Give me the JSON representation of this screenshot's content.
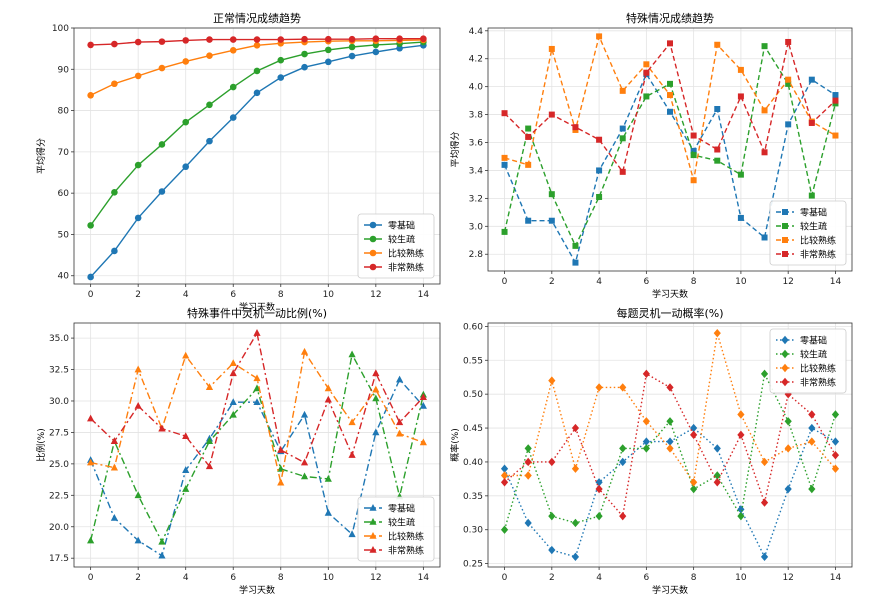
{
  "colors": [
    "#1f77b4",
    "#2ca02c",
    "#ff7f0e",
    "#d62728"
  ],
  "chart_data": [
    {
      "type": "line",
      "title": "正常情况成绩趋势",
      "xlabel": "学习天数",
      "ylabel": "平均得分",
      "x": [
        0,
        1,
        2,
        3,
        4,
        5,
        6,
        7,
        8,
        9,
        10,
        11,
        12,
        13,
        14
      ],
      "xticks": [
        0,
        2,
        4,
        6,
        8,
        10,
        12,
        14
      ],
      "ylim": [
        38,
        100
      ],
      "yticks": [
        40,
        50,
        60,
        70,
        80,
        90,
        100
      ],
      "ytick_decimals": 0,
      "grid": true,
      "legend": "lower-right",
      "line_style": "solid",
      "marker": "circle",
      "series": [
        {
          "name": "零基础",
          "values": [
            39.7,
            46.0,
            54.0,
            60.4,
            66.4,
            72.6,
            78.3,
            84.3,
            88.0,
            90.5,
            91.8,
            93.2,
            94.2,
            95.1,
            95.8
          ]
        },
        {
          "name": "较生疏",
          "values": [
            52.2,
            60.2,
            66.8,
            71.8,
            77.2,
            81.4,
            85.7,
            89.6,
            92.2,
            93.7,
            94.7,
            95.4,
            95.9,
            96.2,
            96.6
          ]
        },
        {
          "name": "比较熟练",
          "values": [
            83.7,
            86.5,
            88.4,
            90.3,
            91.9,
            93.3,
            94.6,
            95.8,
            96.3,
            96.6,
            96.8,
            96.9,
            96.9,
            97.0,
            97.1
          ]
        },
        {
          "name": "非常熟练",
          "values": [
            95.9,
            96.1,
            96.6,
            96.7,
            97.0,
            97.2,
            97.2,
            97.2,
            97.2,
            97.3,
            97.3,
            97.3,
            97.4,
            97.4,
            97.4
          ]
        }
      ]
    },
    {
      "type": "line",
      "title": "特殊情况成绩趋势",
      "xlabel": "学习天数",
      "ylabel": "平均得分",
      "x": [
        0,
        1,
        2,
        3,
        4,
        5,
        6,
        7,
        8,
        9,
        10,
        11,
        12,
        13,
        14
      ],
      "xticks": [
        0,
        2,
        4,
        6,
        8,
        10,
        12,
        14
      ],
      "ylim": [
        2.68,
        4.42
      ],
      "yticks": [
        2.8,
        3.0,
        3.2,
        3.4,
        3.6,
        3.8,
        4.0,
        4.2,
        4.4
      ],
      "ytick_decimals": 1,
      "grid": true,
      "legend": "lower-right",
      "line_style": "dashed",
      "marker": "square",
      "series": [
        {
          "name": "零基础",
          "values": [
            3.44,
            3.04,
            3.04,
            2.74,
            3.4,
            3.7,
            4.09,
            3.82,
            3.54,
            3.84,
            3.06,
            2.92,
            3.73,
            4.05,
            3.94
          ]
        },
        {
          "name": "较生疏",
          "values": [
            2.96,
            3.7,
            3.23,
            2.86,
            3.21,
            3.63,
            3.93,
            4.02,
            3.51,
            3.47,
            3.37,
            4.29,
            4.02,
            3.22,
            3.88
          ]
        },
        {
          "name": "比较熟练",
          "values": [
            3.49,
            3.44,
            4.27,
            3.69,
            4.36,
            3.97,
            4.16,
            3.94,
            3.33,
            4.3,
            4.12,
            3.83,
            4.05,
            3.75,
            3.65
          ]
        },
        {
          "name": "非常熟练",
          "values": [
            3.81,
            3.64,
            3.8,
            3.71,
            3.62,
            3.39,
            4.1,
            4.31,
            3.65,
            3.55,
            3.93,
            3.53,
            4.32,
            3.74,
            3.9
          ]
        }
      ]
    },
    {
      "type": "line",
      "title": "特殊事件中灵机一动比例(%)",
      "xlabel": "学习天数",
      "ylabel": "比例(%)",
      "x": [
        0,
        1,
        2,
        3,
        4,
        5,
        6,
        7,
        8,
        9,
        10,
        11,
        12,
        13,
        14
      ],
      "xticks": [
        0,
        2,
        4,
        6,
        8,
        10,
        12,
        14
      ],
      "ylim": [
        16.8,
        36.2
      ],
      "yticks": [
        17.5,
        20.0,
        22.5,
        25.0,
        27.5,
        30.0,
        32.5,
        35.0
      ],
      "ytick_decimals": 1,
      "grid": true,
      "legend": "lower-right",
      "line_style": "dashdot",
      "marker": "triangle",
      "series": [
        {
          "name": "零基础",
          "values": [
            25.3,
            20.7,
            18.9,
            17.7,
            24.5,
            27.0,
            29.9,
            29.9,
            26.0,
            28.9,
            21.1,
            19.4,
            27.5,
            31.7,
            29.6
          ]
        },
        {
          "name": "较生疏",
          "values": [
            18.9,
            26.8,
            22.5,
            18.8,
            23.0,
            26.8,
            28.9,
            31.0,
            24.6,
            24.0,
            23.8,
            33.7,
            30.2,
            22.4,
            30.5
          ]
        },
        {
          "name": "比较熟练",
          "values": [
            25.1,
            24.7,
            32.5,
            27.8,
            33.6,
            31.1,
            33.0,
            31.8,
            23.5,
            33.9,
            31.0,
            28.3,
            30.9,
            27.4,
            26.7
          ]
        },
        {
          "name": "非常熟练",
          "values": [
            28.6,
            26.8,
            29.6,
            27.8,
            27.2,
            24.8,
            32.2,
            35.4,
            26.1,
            25.1,
            30.1,
            25.7,
            32.2,
            28.3,
            30.3
          ]
        }
      ]
    },
    {
      "type": "line",
      "title": "每题灵机一动概率(%)",
      "xlabel": "学习天数",
      "ylabel": "概率(%)",
      "x": [
        0,
        1,
        2,
        3,
        4,
        5,
        6,
        7,
        8,
        9,
        10,
        11,
        12,
        13,
        14
      ],
      "xticks": [
        0,
        2,
        4,
        6,
        8,
        10,
        12,
        14
      ],
      "ylim": [
        0.245,
        0.605
      ],
      "yticks": [
        0.25,
        0.3,
        0.35,
        0.4,
        0.45,
        0.5,
        0.55,
        0.6
      ],
      "ytick_decimals": 2,
      "grid": true,
      "legend": "upper-right",
      "line_style": "dotted",
      "marker": "diamond",
      "series": [
        {
          "name": "零基础",
          "values": [
            0.39,
            0.31,
            0.27,
            0.26,
            0.37,
            0.4,
            0.43,
            0.43,
            0.45,
            0.42,
            0.33,
            0.26,
            0.36,
            0.45,
            0.43
          ]
        },
        {
          "name": "较生疏",
          "values": [
            0.3,
            0.42,
            0.32,
            0.31,
            0.32,
            0.42,
            0.42,
            0.46,
            0.36,
            0.38,
            0.32,
            0.53,
            0.46,
            0.36,
            0.47
          ]
        },
        {
          "name": "比较熟练",
          "values": [
            0.38,
            0.38,
            0.52,
            0.39,
            0.51,
            0.51,
            0.46,
            0.42,
            0.37,
            0.59,
            0.47,
            0.4,
            0.42,
            0.43,
            0.39
          ]
        },
        {
          "name": "非常熟练",
          "values": [
            0.37,
            0.4,
            0.4,
            0.45,
            0.36,
            0.32,
            0.53,
            0.51,
            0.44,
            0.37,
            0.44,
            0.34,
            0.5,
            0.47,
            0.41
          ]
        }
      ]
    }
  ]
}
